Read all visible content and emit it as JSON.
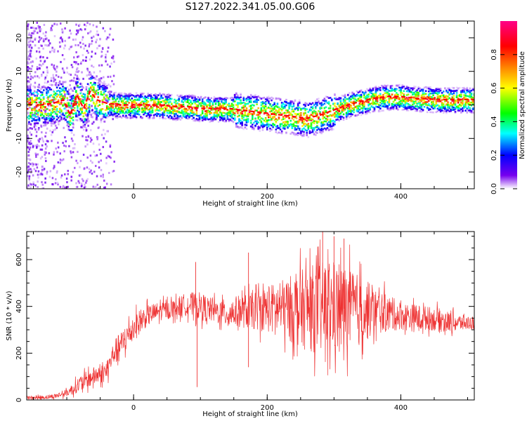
{
  "title": "S127.2022.341.05.00.G06",
  "chart_data": [
    {
      "type": "heatmap",
      "xlabel": "Height of straight line (km)",
      "ylabel": "Frequency (Hz)",
      "xlim": [
        -160,
        510
      ],
      "ylim": [
        -25,
        25
      ],
      "xticks": [
        0,
        200,
        400
      ],
      "yticks": [
        -20,
        -10,
        0,
        10,
        20
      ],
      "colorbar": {
        "label": "Normalized spectral amplitude",
        "range": [
          0,
          1
        ],
        "ticks": [
          "0.0",
          "0.2",
          "0.4",
          "0.6",
          "0.8"
        ],
        "colormap": [
          "#ffffff",
          "#7700ee",
          "#0000ff",
          "#00ffff",
          "#00ff00",
          "#ffff00",
          "#ff8800",
          "#ff0000",
          "#ff0088"
        ]
      },
      "ridge": {
        "x": [
          -140,
          -120,
          -105,
          -95,
          -85,
          -75,
          -65,
          -55,
          -40,
          -20,
          0,
          20,
          40,
          60,
          80,
          100,
          120,
          140,
          160,
          180,
          200,
          220,
          240,
          260,
          280,
          300,
          320,
          340,
          360,
          380,
          400,
          420,
          440,
          460,
          480,
          500,
          510
        ],
        "y": [
          0.0,
          0.5,
          1.5,
          -3.0,
          3.0,
          -1.0,
          4.0,
          1.5,
          0.5,
          0.0,
          0.0,
          0.0,
          0.0,
          -0.5,
          -0.5,
          -1.0,
          -1.0,
          -1.0,
          -1.5,
          -2.0,
          -2.5,
          -3.0,
          -3.5,
          -4.0,
          -3.0,
          -1.5,
          0.0,
          1.0,
          2.0,
          2.5,
          2.5,
          2.0,
          1.8,
          1.6,
          1.6,
          1.6,
          1.6
        ]
      }
    },
    {
      "type": "line",
      "xlabel": "Height of straight line (km)",
      "ylabel": "SNR (10 * v/v)",
      "xlim": [
        -160,
        510
      ],
      "ylim": [
        0,
        720
      ],
      "xticks": [
        0,
        200,
        400
      ],
      "yticks": [
        0,
        200,
        400,
        600
      ],
      "color": "#ee3333",
      "envelope": {
        "x": [
          -160,
          -140,
          -120,
          -100,
          -80,
          -60,
          -40,
          -30,
          -20,
          0,
          20,
          40,
          60,
          80,
          100,
          120,
          140,
          160,
          180,
          200,
          220,
          240,
          260,
          280,
          300,
          320,
          340,
          360,
          380,
          400,
          420,
          440,
          460,
          480,
          500,
          510
        ],
        "center": [
          10,
          10,
          15,
          30,
          70,
          100,
          120,
          200,
          230,
          310,
          360,
          380,
          390,
          410,
          400,
          380,
          370,
          380,
          380,
          390,
          390,
          390,
          390,
          390,
          390,
          390,
          380,
          380,
          370,
          360,
          350,
          350,
          340,
          330,
          330,
          330
        ],
        "spread": [
          8,
          8,
          10,
          15,
          35,
          40,
          40,
          50,
          60,
          60,
          45,
          40,
          40,
          50,
          60,
          50,
          60,
          70,
          80,
          100,
          120,
          150,
          180,
          200,
          200,
          180,
          150,
          100,
          80,
          60,
          60,
          50,
          50,
          40,
          30,
          30
        ]
      },
      "spikes": [
        {
          "x": 93,
          "y": 590
        },
        {
          "x": 95,
          "y": 55
        },
        {
          "x": 172,
          "y": 630
        },
        {
          "x": 172,
          "y": 140
        },
        {
          "x": 283,
          "y": 720
        },
        {
          "x": 300,
          "y": 700
        },
        {
          "x": 315,
          "y": 690
        }
      ]
    }
  ]
}
